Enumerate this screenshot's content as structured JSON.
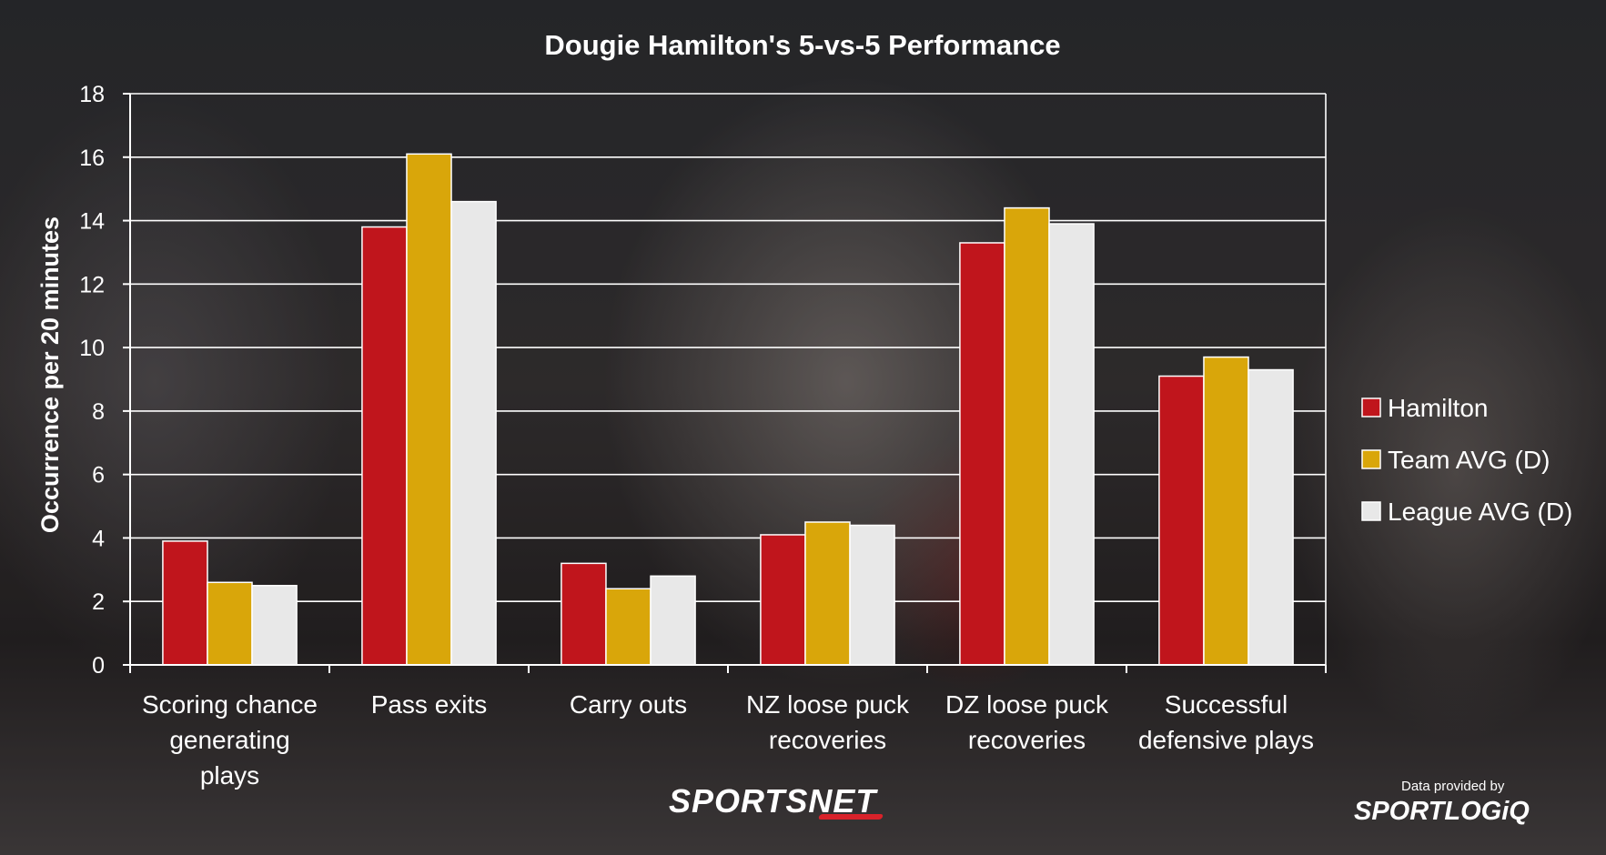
{
  "chart_data": {
    "type": "bar",
    "title": "Dougie Hamilton's 5-vs-5 Performance",
    "ylabel": "Occurrence per 20 minutes",
    "xlabel": "",
    "ylim": [
      0,
      18
    ],
    "yticks": [
      0,
      2,
      4,
      6,
      8,
      10,
      12,
      14,
      16,
      18
    ],
    "grid": true,
    "legend_position": "right",
    "categories": [
      [
        "Scoring chance",
        "generating",
        "plays"
      ],
      [
        "Pass exits"
      ],
      [
        "Carry outs"
      ],
      [
        "NZ loose puck",
        "recoveries"
      ],
      [
        "DZ loose puck",
        "recoveries"
      ],
      [
        "Successful",
        "defensive plays"
      ]
    ],
    "series": [
      {
        "name": "Hamilton",
        "color": "#c0151c",
        "values": [
          3.9,
          13.8,
          3.2,
          4.1,
          13.3,
          9.1
        ]
      },
      {
        "name": "Team AVG (D)",
        "color": "#d9a60a",
        "values": [
          2.6,
          16.1,
          2.4,
          4.5,
          14.4,
          9.7
        ]
      },
      {
        "name": "League AVG (D)",
        "color": "#e8e8e8",
        "values": [
          2.5,
          14.6,
          2.8,
          4.4,
          13.9,
          9.3
        ]
      }
    ]
  },
  "branding": {
    "sportsnet": "SPORTSNET",
    "provided_by": "Data provided by",
    "sportlogiq": "SPORTLOGiQ"
  }
}
